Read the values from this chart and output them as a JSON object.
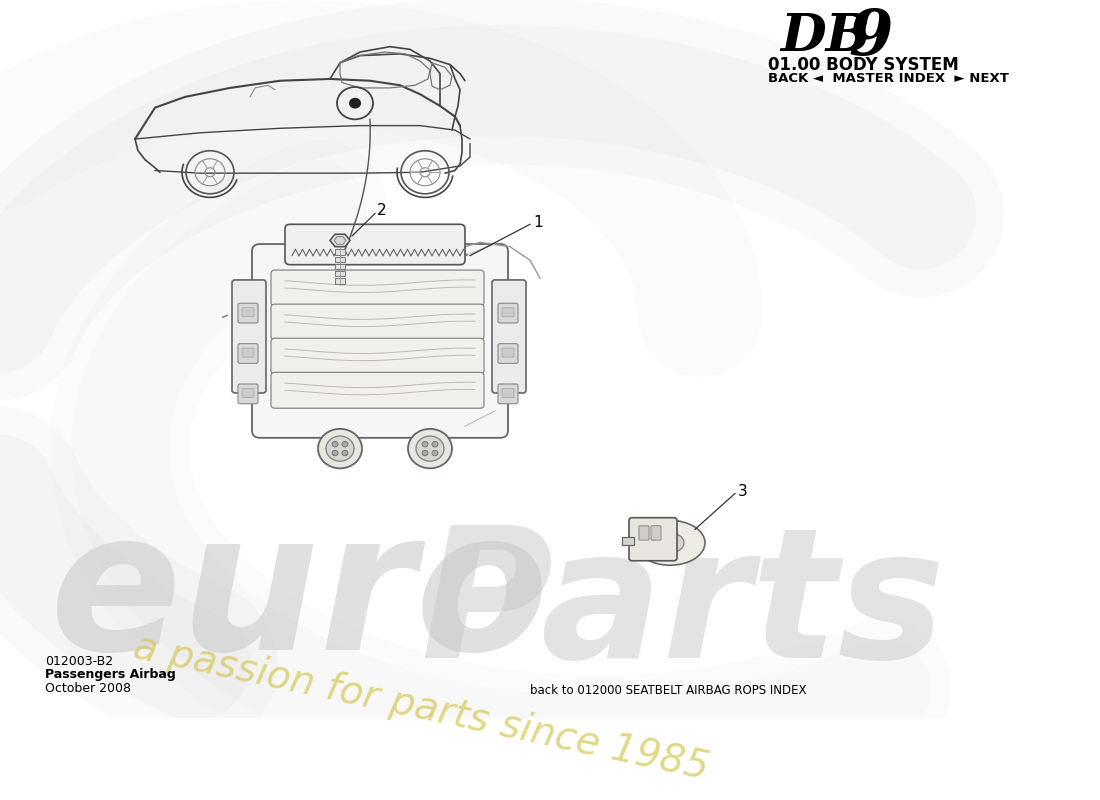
{
  "title_db": "DB",
  "title_9": "9",
  "title_system": "01.00 BODY SYSTEM",
  "title_nav": "BACK ◄  MASTER INDEX  ► NEXT",
  "doc_number": "012003-B2",
  "doc_name": "Passengers Airbag",
  "doc_date": "October 2008",
  "back_link": "back to 012000 SEATBELT AIRBAG ROPS INDEX",
  "bg_color": "#ffffff",
  "sketch_color": "#555555",
  "sketch_light": "#aaaaaa",
  "watermark_grey": "#cccccc",
  "watermark_yellow": "#d4c855",
  "watermark_text1": "euro",
  "watermark_text2": "Parts",
  "watermark_text3": "a passion for parts since 1985"
}
